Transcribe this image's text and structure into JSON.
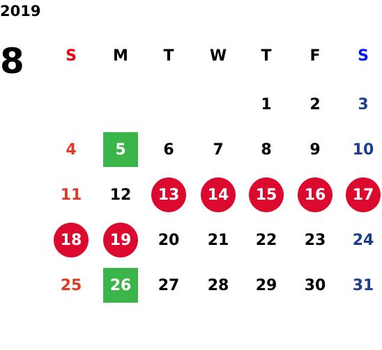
{
  "year": "2019",
  "month": "8",
  "weekdays": [
    "S",
    "M",
    "T",
    "W",
    "T",
    "F",
    "S"
  ],
  "header_colors": [
    "#e8000b",
    "#000000",
    "#000000",
    "#000000",
    "#000000",
    "#000000",
    "#0015ff"
  ],
  "day_colors": [
    "#e03a26",
    "#000000",
    "#000000",
    "#000000",
    "#000000",
    "#000000",
    "#1e3f8c"
  ],
  "mark_colors": {
    "holiday": "#dc0a2f",
    "highlight": "#3bb54a"
  },
  "weeks": [
    [
      null,
      null,
      null,
      null,
      {
        "day": 1
      },
      {
        "day": 2
      },
      {
        "day": 3
      }
    ],
    [
      {
        "day": 4
      },
      {
        "day": 5,
        "mark": "highlight"
      },
      {
        "day": 6
      },
      {
        "day": 7
      },
      {
        "day": 8
      },
      {
        "day": 9
      },
      {
        "day": 10
      }
    ],
    [
      {
        "day": 11
      },
      {
        "day": 12
      },
      {
        "day": 13,
        "mark": "holiday"
      },
      {
        "day": 14,
        "mark": "holiday"
      },
      {
        "day": 15,
        "mark": "holiday"
      },
      {
        "day": 16,
        "mark": "holiday"
      },
      {
        "day": 17,
        "mark": "holiday"
      }
    ],
    [
      {
        "day": 18,
        "mark": "holiday"
      },
      {
        "day": 19,
        "mark": "holiday"
      },
      {
        "day": 20
      },
      {
        "day": 21
      },
      {
        "day": 22
      },
      {
        "day": 23
      },
      {
        "day": 24
      }
    ],
    [
      {
        "day": 25
      },
      {
        "day": 26,
        "mark": "highlight"
      },
      {
        "day": 27
      },
      {
        "day": 28
      },
      {
        "day": 29
      },
      {
        "day": 30
      },
      {
        "day": 31
      }
    ]
  ]
}
